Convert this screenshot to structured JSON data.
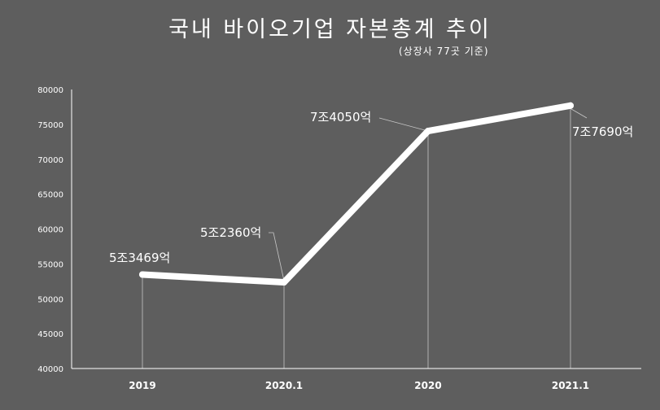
{
  "chart_data": {
    "type": "line",
    "title": "국내 바이오기업 자본총계 추이",
    "subtitle": "(상장사 77곳 기준)",
    "categories": [
      "2019",
      "2020.1",
      "2020",
      "2021.1"
    ],
    "series": [
      {
        "values": [
          53469,
          52360,
          74050,
          77690
        ]
      }
    ],
    "data_labels": [
      "5조3469억",
      "5조2360억",
      "7조4050억",
      "7조7690억"
    ],
    "yticks": [
      40000,
      45000,
      50000,
      55000,
      60000,
      65000,
      70000,
      75000,
      80000
    ],
    "ylim": [
      40000,
      80000
    ],
    "xlabel": "",
    "ylabel": "",
    "grid": false,
    "legend": "none",
    "colors": {
      "background": "#5e5e5e",
      "line": "#ffffff",
      "text": "#ffffff"
    }
  }
}
